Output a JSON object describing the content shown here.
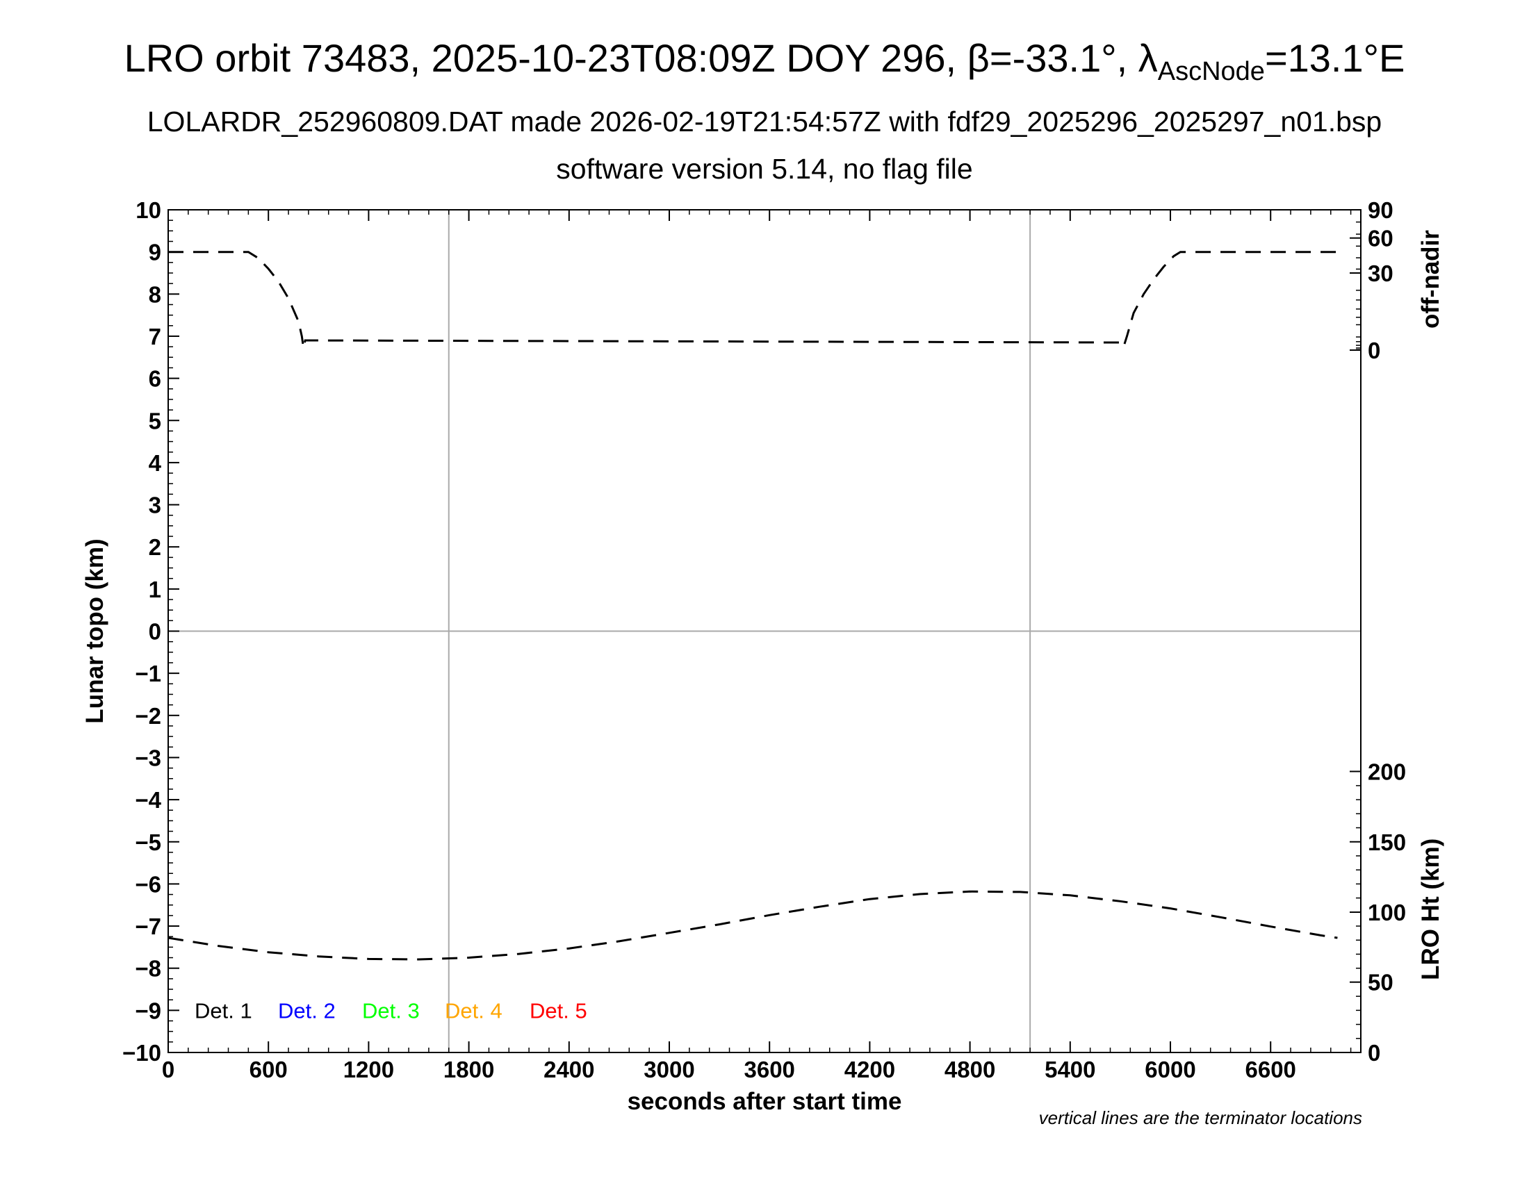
{
  "title": {
    "prefix": "LRO orbit 73483, 2025-10-23T08:09Z DOY 296, ",
    "beta_symbol": "β",
    "beta_value": "=-33.1°, ",
    "lambda_symbol": "λ",
    "lambda_sub": "AscNode",
    "lambda_value": "=13.1°E"
  },
  "subtitle1": "LOLARDR_252960809.DAT made 2026-02-19T21:54:57Z with fdf29_2025296_2025297_n01.bsp",
  "subtitle2": "software version 5.14, no flag file",
  "note": "vertical lines are the terminator locations",
  "chart_data": {
    "type": "line",
    "xlabel": "seconds after start time",
    "ylabel_left": "Lunar topo (km)",
    "ylabel_right_top": "off-nadir",
    "ylabel_right_bottom": "LRO Ht (km)",
    "xlim": [
      0,
      7140
    ],
    "ylim": [
      -10,
      10
    ],
    "x_ticks": [
      0,
      600,
      1200,
      1800,
      2400,
      3000,
      3600,
      4200,
      4800,
      5400,
      6000,
      6600
    ],
    "y_ticks": [
      -10,
      -9,
      -8,
      -7,
      -6,
      -5,
      -4,
      -3,
      -2,
      -1,
      0,
      1,
      2,
      3,
      4,
      5,
      6,
      7,
      8,
      9,
      10
    ],
    "y_tick_labels": [
      "−10",
      "−9",
      "−8",
      "−7",
      "−6",
      "−5",
      "−4",
      "−3",
      "−2",
      "−1",
      "0",
      "1",
      "2",
      "3",
      "4",
      "5",
      "6",
      "7",
      "8",
      "9",
      "10"
    ],
    "right_top_axis": {
      "ticks": [
        0,
        30,
        60,
        90
      ],
      "topo_at": [
        6.67,
        8.5,
        9.33,
        10
      ]
    },
    "right_bottom_axis": {
      "ticks": [
        0,
        50,
        100,
        150,
        200
      ],
      "topo_at": [
        -10,
        -8.33,
        -6.67,
        -5,
        -3.33
      ]
    },
    "terminators": [
      1680,
      5160
    ],
    "series": [
      {
        "axis": "off-nadir",
        "style": "dashed",
        "color": "#000000",
        "x": [
          0,
          480,
          540,
          600,
          660,
          720,
          780,
          800,
          810,
          820,
          5700,
          5720,
          5740,
          5780,
          5840,
          5900,
          5960,
          6020,
          6060,
          7000
        ],
        "y": [
          9.0,
          9.0,
          8.85,
          8.6,
          8.3,
          7.9,
          7.35,
          7.0,
          6.72,
          6.9,
          6.85,
          6.75,
          7.0,
          7.55,
          8.0,
          8.35,
          8.65,
          8.9,
          9.0,
          9.0
        ]
      },
      {
        "axis": "LRO Ht (km)",
        "style": "dashed",
        "color": "#000000",
        "x": [
          0,
          300,
          600,
          900,
          1200,
          1500,
          1800,
          2100,
          2400,
          2700,
          3000,
          3300,
          3600,
          3900,
          4200,
          4500,
          4800,
          5100,
          5400,
          5700,
          6000,
          6300,
          6600,
          6900,
          7000
        ],
        "y": [
          -7.28,
          -7.47,
          -7.62,
          -7.72,
          -7.78,
          -7.79,
          -7.75,
          -7.66,
          -7.53,
          -7.36,
          -7.16,
          -6.96,
          -6.74,
          -6.54,
          -6.36,
          -6.24,
          -6.18,
          -6.19,
          -6.27,
          -6.41,
          -6.58,
          -6.79,
          -7.01,
          -7.22,
          -7.28
        ]
      }
    ],
    "legend": {
      "placement": "bottom-left",
      "entries": [
        {
          "label": "Det. 1",
          "color": "#000000"
        },
        {
          "label": "Det. 2",
          "color": "#0000ff"
        },
        {
          "label": "Det. 3",
          "color": "#00ff00"
        },
        {
          "label": "Det. 4",
          "color": "#ffa500"
        },
        {
          "label": "Det. 5",
          "color": "#ff0000"
        }
      ]
    },
    "grid": {
      "vertical_at_terminators": true,
      "horizontal_at_zero": true
    }
  }
}
